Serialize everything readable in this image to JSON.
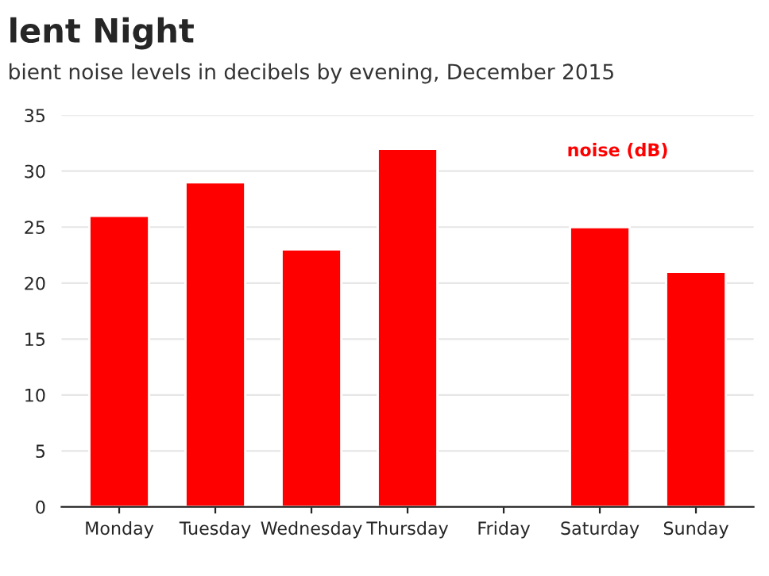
{
  "chart_data": {
    "type": "bar",
    "title": "lent Night",
    "subtitle": "bient noise levels in decibels by evening, December 2015",
    "categories": [
      "Monday",
      "Tuesday",
      "Wednesday",
      "Thursday",
      "Friday",
      "Saturday",
      "Sunday"
    ],
    "series": [
      {
        "name": "noise (dB)",
        "color": "#ff0000",
        "values": [
          26,
          29,
          23,
          32,
          null,
          25,
          21
        ]
      }
    ],
    "ylim": [
      0,
      35
    ],
    "yticks": [
      0,
      5,
      10,
      15,
      20,
      25,
      30,
      35
    ],
    "grid": "y",
    "legend": "top right"
  }
}
